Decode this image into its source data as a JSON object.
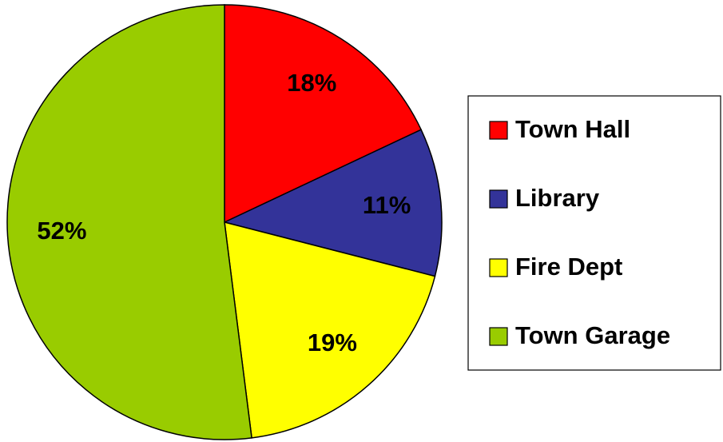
{
  "chart_data": {
    "type": "pie",
    "categories": [
      "Town Hall",
      "Library",
      "Fire Dept",
      "Town Garage"
    ],
    "values": [
      18,
      11,
      19,
      52
    ],
    "value_labels": [
      "18%",
      "11%",
      "19%",
      "52%"
    ],
    "colors": [
      "#ff0000",
      "#333399",
      "#ffff00",
      "#99cc00"
    ],
    "legend": "right"
  }
}
